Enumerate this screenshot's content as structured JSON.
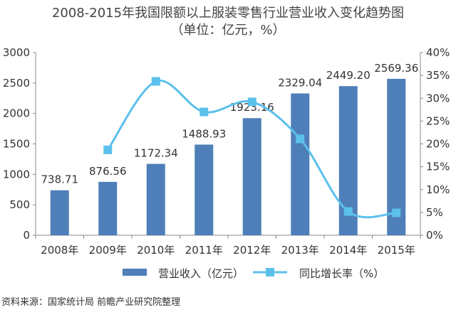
{
  "title_line1": "2008-2015年我国限额以上服装零售行业营业收入变化趋势图",
  "title_line2": "（单位：亿元，%）",
  "source": "资料来源：国家统计局 前瞻产业研究院整理",
  "chart_data": {
    "type": "bar",
    "categories": [
      "2008年",
      "2009年",
      "2010年",
      "2011年",
      "2012年",
      "2013年",
      "2014年",
      "2015年"
    ],
    "series": [
      {
        "name": "营业收入（亿元）",
        "type": "bar",
        "axis": "left",
        "color": "#4f7fb8",
        "values": [
          738.71,
          876.56,
          1172.34,
          1488.93,
          1923.16,
          2329.04,
          2449.2,
          2569.36
        ],
        "labels": [
          "738.71",
          "876.56",
          "1172.34",
          "1488.93",
          "1923.16",
          "2329.04",
          "2449.20",
          "2569.36"
        ]
      },
      {
        "name": "同比增长率（%）",
        "type": "line",
        "axis": "right",
        "color": "#5bc0eb",
        "smooth": true,
        "values": [
          null,
          18.7,
          33.7,
          27.0,
          29.2,
          21.1,
          5.2,
          4.9
        ]
      }
    ],
    "y_left": {
      "min": 0,
      "max": 3000,
      "ticks": [
        0,
        500,
        1000,
        1500,
        2000,
        2500,
        3000
      ],
      "tick_labels": [
        "0",
        "500",
        "1000",
        "1500",
        "2000",
        "2500",
        "3000"
      ]
    },
    "y_right": {
      "min": 0,
      "max": 40,
      "ticks": [
        0,
        5,
        10,
        15,
        20,
        25,
        30,
        35,
        40
      ],
      "tick_labels": [
        "0%",
        "5%",
        "10%",
        "15%",
        "20%",
        "25%",
        "30%",
        "35%",
        "40%"
      ]
    },
    "grid": false,
    "legend": "bottom"
  }
}
